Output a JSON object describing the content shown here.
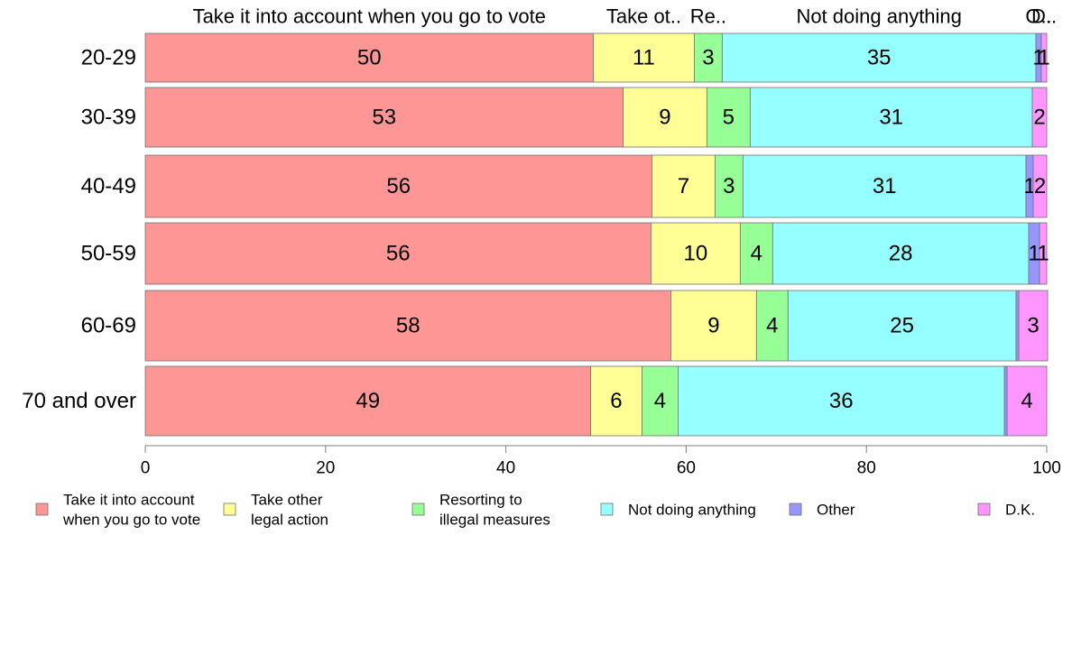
{
  "chart_data": {
    "type": "bar",
    "orientation": "horizontal",
    "stacked": true,
    "categories": [
      "20-29",
      "30-39",
      "40-49",
      "50-59",
      "60-69",
      "70 and over"
    ],
    "series": [
      {
        "name": "Take it into account when you go to vote",
        "legend_lines": [
          "Take it into account",
          "when you go to vote"
        ],
        "top_label": "Take it into account when you go to vote",
        "color": "#ff9696",
        "values": [
          49.7,
          53.0,
          56.2,
          56.1,
          58.3,
          49.4
        ],
        "labels": [
          "50",
          "53",
          "56",
          "56",
          "58",
          "49"
        ]
      },
      {
        "name": "Take other legal action",
        "legend_lines": [
          "Take other",
          "legal action"
        ],
        "top_label": "Take ot..",
        "color": "#ffff96",
        "values": [
          11.2,
          9.3,
          7.0,
          9.9,
          9.5,
          5.7
        ],
        "labels": [
          "11",
          "9",
          "7",
          "10",
          "9",
          "6"
        ]
      },
      {
        "name": "Resorting to illegal measures",
        "legend_lines": [
          "Resorting to",
          "illegal measures"
        ],
        "top_label": "Re..",
        "color": "#96ff96",
        "values": [
          3.1,
          4.8,
          3.1,
          3.6,
          3.5,
          4.0
        ],
        "labels": [
          "3",
          "5",
          "3",
          "4",
          "4",
          "4"
        ]
      },
      {
        "name": "Not doing anything",
        "legend_lines": [
          "Not doing anything"
        ],
        "top_label": "Not doing anything",
        "color": "#96ffff",
        "values": [
          34.8,
          31.3,
          31.4,
          28.4,
          25.3,
          36.2
        ],
        "labels": [
          "35",
          "31",
          "31",
          "28",
          "25",
          "36"
        ]
      },
      {
        "name": "Other",
        "legend_lines": [
          "Other"
        ],
        "top_label": "O..",
        "color": "#9696ff",
        "values": [
          0.6,
          0.0,
          0.8,
          1.2,
          0.3,
          0.3
        ],
        "labels": [
          "1",
          "",
          "1",
          "1",
          "",
          ""
        ]
      },
      {
        "name": "D.K.",
        "legend_lines": [
          "D.K."
        ],
        "top_label": "D..",
        "color": "#ff96ff",
        "values": [
          0.6,
          1.6,
          1.5,
          0.8,
          3.2,
          4.4
        ],
        "labels": [
          "1",
          "2",
          "2",
          "1",
          "3",
          "4"
        ]
      }
    ],
    "xlim": [
      0,
      100
    ],
    "x_ticks": [
      "0",
      "20",
      "40",
      "60",
      "80",
      "100"
    ],
    "grid": false,
    "legend_position": "bottom"
  }
}
